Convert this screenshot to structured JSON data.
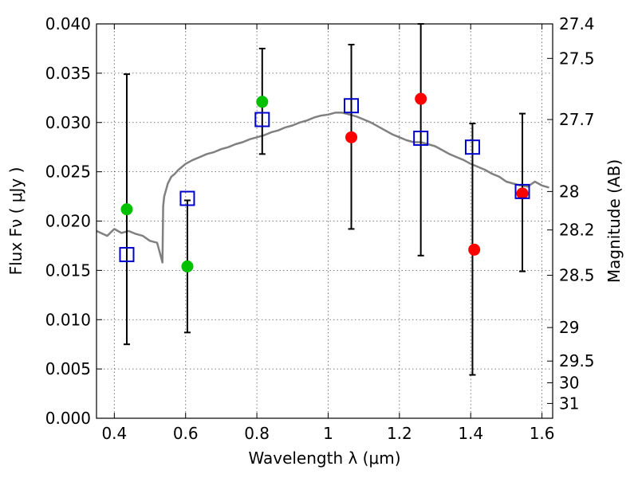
{
  "chart_data": {
    "type": "scatter",
    "title": "",
    "xlabel": "Wavelength  λ (μm)",
    "ylabel": "Flux  Fν  ( μJy )",
    "ylabel_right": "Magnitude (AB)",
    "xlim": [
      0.35,
      1.63
    ],
    "ylim": [
      0.0,
      0.04
    ],
    "grid": true,
    "x_ticks": [
      0.4,
      0.6,
      0.8,
      1.0,
      1.2,
      1.4,
      1.6
    ],
    "x_tick_labels": [
      "0.4",
      "0.6",
      "0.8",
      "1",
      "1.2",
      "1.4",
      "1.6"
    ],
    "y_ticks": [
      0.0,
      0.005,
      0.01,
      0.015,
      0.02,
      0.025,
      0.03,
      0.035,
      0.04
    ],
    "y_tick_labels": [
      "0.000",
      "0.005",
      "0.010",
      "0.015",
      "0.020",
      "0.025",
      "0.030",
      "0.035",
      "0.040"
    ],
    "right_ticks": [
      {
        "label": "27.4",
        "flux": 0.04
      },
      {
        "label": "27.5",
        "flux": 0.0365
      },
      {
        "label": "27.7",
        "flux": 0.0303
      },
      {
        "label": "28",
        "flux": 0.023
      },
      {
        "label": "28.2",
        "flux": 0.0191
      },
      {
        "label": "28.5",
        "flux": 0.0145
      },
      {
        "label": "29",
        "flux": 0.0092
      },
      {
        "label": "29.5",
        "flux": 0.0058
      },
      {
        "label": "30",
        "flux": 0.0036
      },
      {
        "label": "31",
        "flux": 0.0015
      }
    ],
    "series": [
      {
        "type": "line",
        "color": "#808080",
        "x": [
          0.35,
          0.38,
          0.4,
          0.42,
          0.44,
          0.46,
          0.48,
          0.5,
          0.52,
          0.53,
          0.535,
          0.537,
          0.54,
          0.55,
          0.56,
          0.57,
          0.58,
          0.59,
          0.6,
          0.62,
          0.64,
          0.66,
          0.68,
          0.7,
          0.72,
          0.74,
          0.76,
          0.78,
          0.8,
          0.82,
          0.84,
          0.86,
          0.88,
          0.9,
          0.92,
          0.94,
          0.96,
          0.98,
          1.0,
          1.02,
          1.04,
          1.06,
          1.08,
          1.1,
          1.12,
          1.14,
          1.16,
          1.18,
          1.2,
          1.22,
          1.24,
          1.26,
          1.28,
          1.3,
          1.32,
          1.34,
          1.36,
          1.38,
          1.4,
          1.42,
          1.44,
          1.46,
          1.48,
          1.5,
          1.52,
          1.54,
          1.56,
          1.58,
          1.6,
          1.62
        ],
        "y": [
          0.019,
          0.0185,
          0.0192,
          0.0188,
          0.019,
          0.0187,
          0.0185,
          0.018,
          0.0178,
          0.0165,
          0.0158,
          0.0215,
          0.0225,
          0.0238,
          0.0245,
          0.0248,
          0.0252,
          0.0255,
          0.0258,
          0.0262,
          0.0265,
          0.0268,
          0.027,
          0.0273,
          0.0275,
          0.0278,
          0.028,
          0.0283,
          0.0285,
          0.0287,
          0.029,
          0.0292,
          0.0295,
          0.0297,
          0.03,
          0.0302,
          0.0305,
          0.0307,
          0.0308,
          0.031,
          0.031,
          0.0308,
          0.0306,
          0.0303,
          0.03,
          0.0296,
          0.0292,
          0.0288,
          0.0285,
          0.0282,
          0.028,
          0.028,
          0.0278,
          0.0276,
          0.0272,
          0.0268,
          0.0265,
          0.0262,
          0.0258,
          0.0255,
          0.0252,
          0.0248,
          0.0245,
          0.024,
          0.0238,
          0.0236,
          0.0235,
          0.024,
          0.0236,
          0.0234
        ]
      },
      {
        "type": "scatter",
        "marker": "circle",
        "color": "#00c000",
        "x": [
          0.435,
          0.605,
          0.815
        ],
        "y": [
          0.0212,
          0.0154,
          0.0321
        ]
      },
      {
        "type": "scatter",
        "marker": "circle",
        "color": "#ff0000",
        "x": [
          1.065,
          1.26,
          1.41,
          1.545
        ],
        "y": [
          0.0285,
          0.0324,
          0.0171,
          0.0228
        ]
      },
      {
        "type": "errorbar",
        "marker": "square",
        "color": "#0000cc",
        "x": [
          0.435,
          0.605,
          0.815,
          1.065,
          1.26,
          1.405,
          1.545
        ],
        "y": [
          0.0166,
          0.0223,
          0.0303,
          0.0317,
          0.0284,
          0.0275,
          0.023
        ],
        "y_low": [
          0.0075,
          0.0087,
          0.0268,
          0.0192,
          0.0165,
          0.0044,
          0.0149
        ],
        "y_high": [
          0.0349,
          0.0221,
          0.0375,
          0.0379,
          0.04,
          0.0299,
          0.0309
        ]
      }
    ]
  }
}
